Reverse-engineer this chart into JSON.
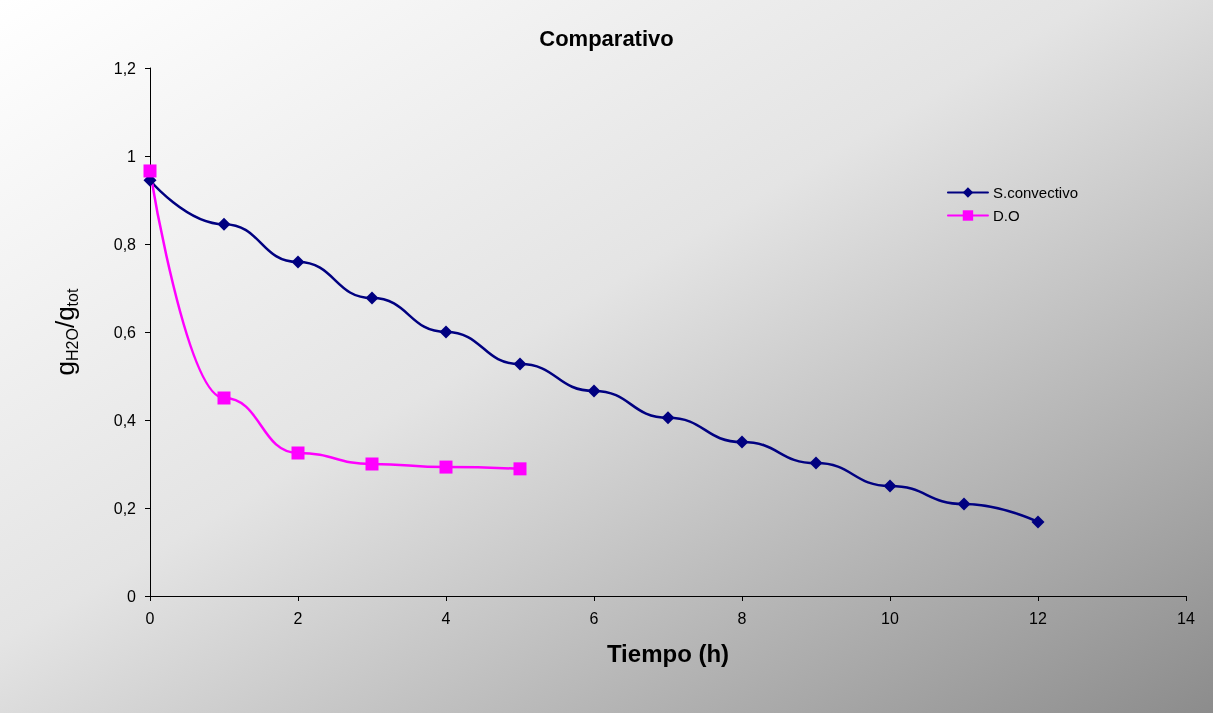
{
  "chart_data": {
    "type": "line",
    "title": "Comparativo",
    "xlabel": "Tiempo (h)",
    "ylabel": "g$_{H2O}$/g$_{tot}$",
    "xlim": [
      0,
      14
    ],
    "xticks": [
      0,
      2,
      4,
      6,
      8,
      10,
      12,
      14
    ],
    "ylim": [
      0,
      1.2
    ],
    "yticks": [
      0,
      {
        "value": 0.2,
        "label": "0,2"
      },
      {
        "value": 0.4,
        "label": "0,4"
      },
      {
        "value": 0.6,
        "label": "0,6"
      },
      {
        "value": 0.8,
        "label": "0,8"
      },
      1,
      {
        "value": 1.2,
        "label": "1,2"
      }
    ],
    "grid": false,
    "legend": "top right",
    "series": [
      {
        "name": "S.convectivo",
        "color": "#000080",
        "marker": "diamond",
        "x": [
          0,
          1,
          2,
          3,
          4,
          5,
          6,
          7,
          8,
          9,
          10,
          11,
          12
        ],
        "values": [
          0.945,
          0.845,
          0.759,
          0.677,
          0.6,
          0.527,
          0.466,
          0.405,
          0.35,
          0.302,
          0.25,
          0.209,
          0.168
        ]
      },
      {
        "name": "D.O",
        "color": "#ff00ff",
        "marker": "square",
        "x": [
          0,
          1,
          2,
          3,
          4,
          5
        ],
        "values": [
          0.966,
          0.45,
          0.325,
          0.3,
          0.293,
          0.289
        ]
      }
    ]
  }
}
